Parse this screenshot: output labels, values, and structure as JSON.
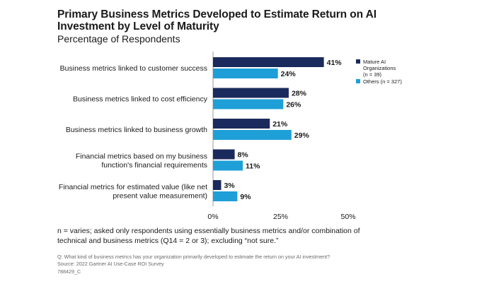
{
  "chart_data": {
    "type": "bar",
    "orientation": "horizontal",
    "title": "Primary Business Metrics Developed to Estimate Return on AI Investment by Level of Maturity",
    "subtitle": "Percentage of Respondents",
    "categories": [
      "Business metrics linked to customer success",
      "Business metrics linked to cost efficiency",
      "Business metrics linked to business growth",
      "Financial metrics based on my business function's financial requirements",
      "Financial metrics for estimated value (like net present value measurement)"
    ],
    "category_lines": [
      [
        "Business metrics linked to customer success"
      ],
      [
        "Business metrics linked to cost efficiency"
      ],
      [
        "Business metrics linked to business growth"
      ],
      [
        "Financial metrics based on my business",
        "function's financial requirements"
      ],
      [
        "Financial metrics for estimated value (like net",
        "present value measurement)"
      ]
    ],
    "series": [
      {
        "name": "Mature AI Organizations (n = 39)",
        "legend_lines": [
          "Mature AI",
          "Organizations",
          "(n = 39)"
        ],
        "color": "#1b2a5c",
        "values": [
          41,
          28,
          21,
          8,
          3
        ]
      },
      {
        "name": "Others (n = 327)",
        "legend_lines": [
          "Others (n = 327)"
        ],
        "color": "#1e9fd8",
        "values": [
          24,
          26,
          29,
          11,
          9
        ]
      }
    ],
    "xlim": [
      0,
      50
    ],
    "xticks": [
      0,
      25,
      50
    ],
    "tick_labels": [
      "0%",
      "25%",
      "50%"
    ],
    "value_suffix": "%",
    "legend_position": "right"
  },
  "footnote": "n = varies; asked only respondents using essentially business metrics and/or combination of technical and business metrics (Q14 = 2 or 3); excluding “not sure.”",
  "question": "Q: What kind of business metrics has your organization primarily developed to estimate the return on your AI investment?",
  "source": "Source: 2022 Gartner AI Use-Case ROI Survey",
  "id_code": "788429_C"
}
